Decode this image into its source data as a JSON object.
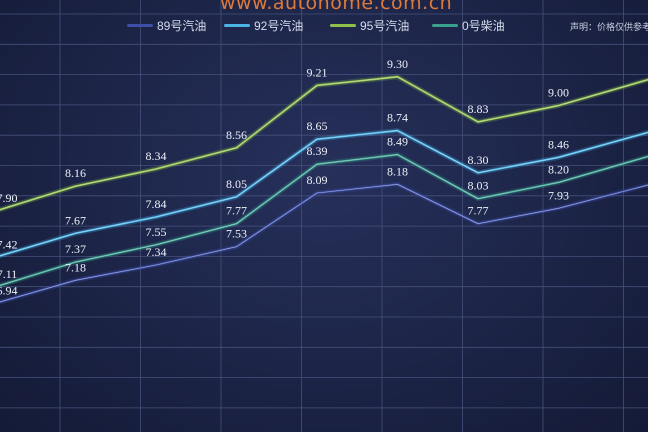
{
  "watermark": "www.autohome.com.cn",
  "disclaimer": "声明：价格仅供参考",
  "legend": [
    {
      "label": "89号汽油",
      "color": "#3d4fa8"
    },
    {
      "label": "92号汽油",
      "color": "#4ab4e6"
    },
    {
      "label": "95号汽油",
      "color": "#8fc04a"
    },
    {
      "label": "0号柴油",
      "color": "#3aa08e"
    }
  ],
  "chart_data": {
    "type": "line",
    "title": "",
    "xlabel": "",
    "ylabel": "",
    "grid": true,
    "ylim": [
      5.6,
      10.1
    ],
    "series": [
      {
        "name": "89号汽油",
        "color": "#3d4fa8",
        "values": [
          6.94,
          7.18,
          7.34,
          7.53,
          8.09,
          8.18,
          7.77,
          7.93,
          null
        ]
      },
      {
        "name": "92号汽油",
        "color": "#4ab4e6",
        "values": [
          7.42,
          7.67,
          7.84,
          8.05,
          8.65,
          8.74,
          8.3,
          8.46,
          null
        ]
      },
      {
        "name": "95号汽油",
        "color": "#8fc04a",
        "values": [
          7.9,
          8.16,
          8.34,
          8.56,
          9.21,
          9.3,
          8.83,
          9.0,
          null
        ]
      },
      {
        "name": "0号柴油",
        "color": "#3aa08e",
        "values": [
          7.11,
          7.37,
          7.55,
          7.77,
          8.39,
          8.49,
          8.03,
          8.2,
          null
        ]
      }
    ],
    "edge_values": {
      "89号汽油": 8.2,
      "92号汽油": 8.75,
      "95号汽油": 9.3,
      "0号柴油": 8.5
    }
  }
}
